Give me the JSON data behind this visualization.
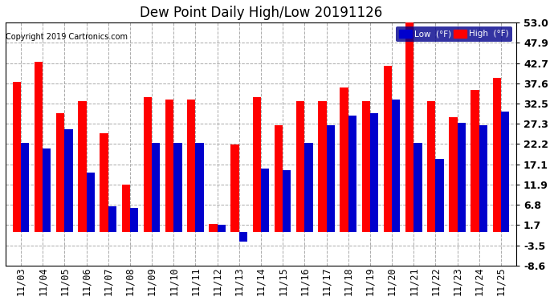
{
  "title": "Dew Point Daily High/Low 20191126",
  "copyright": "Copyright 2019 Cartronics.com",
  "legend_low": "Low  (°F)",
  "legend_high": "High  (°F)",
  "dates": [
    "11/03",
    "11/04",
    "11/05",
    "11/06",
    "11/07",
    "11/08",
    "11/09",
    "11/10",
    "11/11",
    "11/12",
    "11/13",
    "11/14",
    "11/15",
    "11/16",
    "11/17",
    "11/18",
    "11/19",
    "11/20",
    "11/21",
    "11/22",
    "11/23",
    "11/24",
    "11/25"
  ],
  "high_values": [
    38.0,
    43.0,
    30.0,
    33.0,
    25.0,
    12.0,
    34.0,
    33.5,
    33.5,
    2.0,
    22.0,
    34.0,
    27.0,
    33.0,
    33.0,
    36.5,
    33.0,
    42.0,
    53.0,
    33.0,
    29.0,
    36.0,
    39.0
  ],
  "low_values": [
    22.5,
    21.0,
    26.0,
    15.0,
    6.5,
    6.0,
    22.5,
    22.5,
    22.5,
    1.7,
    -2.5,
    16.0,
    15.5,
    22.5,
    27.0,
    29.5,
    30.0,
    33.5,
    22.5,
    18.5,
    27.5,
    27.0,
    30.5
  ],
  "ylim": [
    -8.6,
    53.0
  ],
  "yticks": [
    -8.6,
    -3.5,
    1.7,
    6.8,
    11.9,
    17.1,
    22.2,
    27.3,
    32.5,
    37.6,
    42.7,
    47.9,
    53.0
  ],
  "bar_width": 0.38,
  "high_color": "#ff0000",
  "low_color": "#0000cd",
  "bg_color": "#ffffff",
  "grid_color": "#aaaaaa",
  "title_fontsize": 12,
  "tick_fontsize": 8.5,
  "ytick_fontsize": 9
}
